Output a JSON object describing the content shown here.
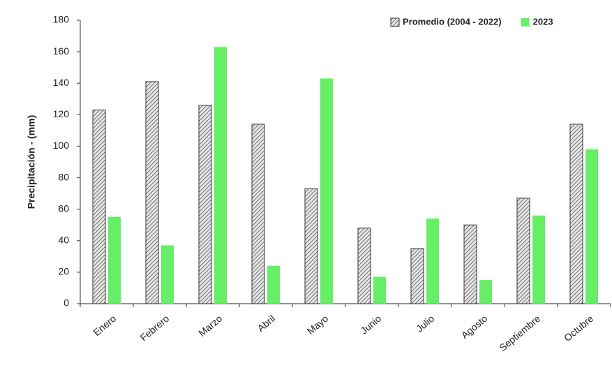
{
  "chart_data": {
    "type": "bar",
    "y_label": "Precipitación - (mm)",
    "categories": [
      "Enero",
      "Febrero",
      "Marzo",
      "Abril",
      "Mayo",
      "Junio",
      "Julio",
      "Agosto",
      "Septiembre",
      "Octubre"
    ],
    "series": [
      {
        "name": "Promedio (2004 - 2022)",
        "color": "#d9d9d9",
        "hatch": true,
        "values": [
          123,
          141,
          126,
          114,
          73,
          48,
          35,
          50,
          67,
          114
        ]
      },
      {
        "name": "2023",
        "color": "#66ee66",
        "hatch": false,
        "values": [
          55,
          37,
          163,
          24,
          143,
          17,
          54,
          15,
          56,
          98
        ]
      }
    ],
    "ylim": [
      0,
      180
    ],
    "yticks": [
      0,
      20,
      40,
      60,
      80,
      100,
      120,
      140,
      160,
      180
    ],
    "legend": "top-right"
  }
}
